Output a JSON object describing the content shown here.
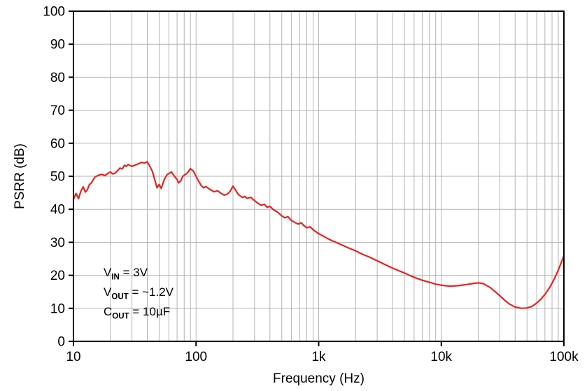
{
  "figure": {
    "background": "#ffffff",
    "border_color": "#000000",
    "grid_color": "#b3b3b3",
    "tick_color": "#000000",
    "label_color": "#000000",
    "label_font_size": 19
  },
  "chart_data": {
    "type": "line",
    "title": "",
    "xlabel": "Frequency (Hz)",
    "ylabel": "PSRR (dB)",
    "x_scale": "log",
    "xlim": [
      10,
      100000
    ],
    "ylim": [
      0,
      100
    ],
    "y_ticks": [
      0,
      10,
      20,
      30,
      40,
      50,
      60,
      70,
      80,
      90,
      100
    ],
    "x_major_ticks": [
      10,
      100,
      1000,
      10000,
      100000
    ],
    "x_tick_labels": [
      "10",
      "100",
      "1k",
      "10k",
      "100k"
    ],
    "grid": true,
    "legend_position": "none",
    "annotation": {
      "lines": [
        {
          "prefix": "V",
          "sub": "IN",
          "rest": " = 3V"
        },
        {
          "prefix": "V",
          "sub": "OUT",
          "rest": " = ~1.2V"
        },
        {
          "prefix": "C",
          "sub": "OUT",
          "rest": " = 10µF"
        }
      ]
    },
    "series": [
      {
        "name": "PSRR",
        "color": "#e8231f",
        "points": [
          [
            10,
            43
          ],
          [
            10.5,
            44.8
          ],
          [
            11,
            43.2
          ],
          [
            11.5,
            45.5
          ],
          [
            12,
            46.8
          ],
          [
            12.5,
            45.2
          ],
          [
            13,
            46.0
          ],
          [
            13.5,
            47.5
          ],
          [
            14,
            48.0
          ],
          [
            15,
            49.8
          ],
          [
            16,
            50.3
          ],
          [
            17,
            50.6
          ],
          [
            18,
            50.2
          ],
          [
            19,
            50.8
          ],
          [
            20,
            51.3
          ],
          [
            21,
            50.7
          ],
          [
            22,
            51.0
          ],
          [
            23,
            51.8
          ],
          [
            24,
            52.5
          ],
          [
            25,
            52.2
          ],
          [
            26,
            53.3
          ],
          [
            27,
            53.0
          ],
          [
            28,
            53.6
          ],
          [
            29,
            53.2
          ],
          [
            30,
            53.0
          ],
          [
            32,
            53.4
          ],
          [
            34,
            53.8
          ],
          [
            36,
            54.2
          ],
          [
            38,
            54.0
          ],
          [
            40,
            54.4
          ],
          [
            42,
            53.0
          ],
          [
            44,
            51.5
          ],
          [
            46,
            49.0
          ],
          [
            48,
            46.5
          ],
          [
            50,
            47.5
          ],
          [
            52,
            46.3
          ],
          [
            55,
            49.0
          ],
          [
            58,
            50.5
          ],
          [
            60,
            50.8
          ],
          [
            63,
            51.3
          ],
          [
            66,
            50.2
          ],
          [
            70,
            49.0
          ],
          [
            72,
            48.0
          ],
          [
            75,
            48.6
          ],
          [
            78,
            50.0
          ],
          [
            80,
            50.3
          ],
          [
            85,
            51.0
          ],
          [
            90,
            52.3
          ],
          [
            95,
            51.6
          ],
          [
            100,
            50.0
          ],
          [
            105,
            48.5
          ],
          [
            110,
            47.2
          ],
          [
            115,
            46.5
          ],
          [
            120,
            46.9
          ],
          [
            130,
            46.0
          ],
          [
            140,
            45.3
          ],
          [
            150,
            45.6
          ],
          [
            160,
            44.8
          ],
          [
            170,
            44.3
          ],
          [
            180,
            44.6
          ],
          [
            190,
            45.5
          ],
          [
            200,
            47.0
          ],
          [
            210,
            45.8
          ],
          [
            220,
            44.6
          ],
          [
            230,
            44.0
          ],
          [
            240,
            43.6
          ],
          [
            250,
            43.9
          ],
          [
            260,
            43.3
          ],
          [
            280,
            43.6
          ],
          [
            300,
            42.6
          ],
          [
            320,
            41.8
          ],
          [
            340,
            41.2
          ],
          [
            360,
            41.5
          ],
          [
            380,
            40.6
          ],
          [
            400,
            40.9
          ],
          [
            430,
            39.8
          ],
          [
            460,
            39.2
          ],
          [
            500,
            38.0
          ],
          [
            530,
            37.4
          ],
          [
            560,
            37.8
          ],
          [
            600,
            36.6
          ],
          [
            640,
            36.0
          ],
          [
            680,
            35.5
          ],
          [
            720,
            35.9
          ],
          [
            760,
            35.0
          ],
          [
            800,
            34.4
          ],
          [
            850,
            34.7
          ],
          [
            900,
            33.8
          ],
          [
            950,
            33.2
          ],
          [
            1000,
            32.6
          ],
          [
            1100,
            31.8
          ],
          [
            1200,
            31.0
          ],
          [
            1300,
            30.4
          ],
          [
            1400,
            29.9
          ],
          [
            1500,
            29.4
          ],
          [
            1700,
            28.5
          ],
          [
            2000,
            27.4
          ],
          [
            2300,
            26.3
          ],
          [
            2600,
            25.5
          ],
          [
            3000,
            24.4
          ],
          [
            3500,
            23.2
          ],
          [
            4000,
            22.2
          ],
          [
            4500,
            21.4
          ],
          [
            5000,
            20.7
          ],
          [
            5500,
            20.0
          ],
          [
            6000,
            19.4
          ],
          [
            7000,
            18.5
          ],
          [
            8000,
            17.9
          ],
          [
            9000,
            17.3
          ],
          [
            10000,
            17.0
          ],
          [
            11000,
            16.8
          ],
          [
            12000,
            16.7
          ],
          [
            14000,
            16.9
          ],
          [
            16000,
            17.2
          ],
          [
            18000,
            17.5
          ],
          [
            20000,
            17.7
          ],
          [
            22000,
            17.5
          ],
          [
            25000,
            16.3
          ],
          [
            28000,
            14.8
          ],
          [
            30000,
            13.8
          ],
          [
            33000,
            12.4
          ],
          [
            36000,
            11.3
          ],
          [
            40000,
            10.4
          ],
          [
            45000,
            10.0
          ],
          [
            50000,
            10.1
          ],
          [
            55000,
            10.6
          ],
          [
            60000,
            11.6
          ],
          [
            65000,
            12.8
          ],
          [
            70000,
            14.2
          ],
          [
            75000,
            15.8
          ],
          [
            80000,
            17.6
          ],
          [
            85000,
            19.5
          ],
          [
            90000,
            21.6
          ],
          [
            95000,
            23.8
          ],
          [
            100000,
            26.0
          ]
        ]
      }
    ]
  }
}
